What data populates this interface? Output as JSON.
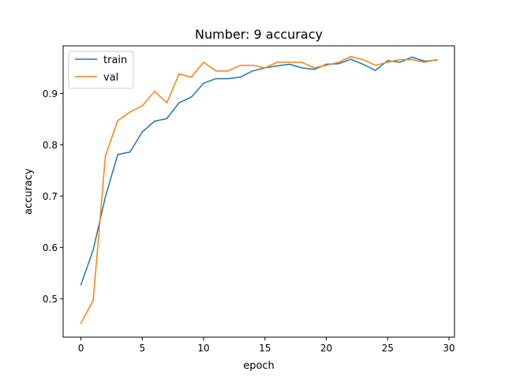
{
  "chart_data": {
    "type": "line",
    "title": "Number: 9 accuracy",
    "xlabel": "epoch",
    "ylabel": "accuracy",
    "xlim": [
      -1.45,
      30.45
    ],
    "ylim": [
      0.425,
      0.993
    ],
    "xticks": [
      0,
      5,
      10,
      15,
      20,
      25,
      30
    ],
    "yticks": [
      0.5,
      0.6,
      0.7,
      0.8,
      0.9
    ],
    "grid": false,
    "legend": "top-left",
    "x": [
      0,
      1,
      2,
      3,
      4,
      5,
      6,
      7,
      8,
      9,
      10,
      11,
      12,
      13,
      14,
      15,
      16,
      17,
      18,
      19,
      20,
      21,
      22,
      23,
      24,
      25,
      26,
      27,
      28,
      29
    ],
    "series": [
      {
        "name": "train",
        "color": "#1f77b4",
        "values": [
          0.527,
          0.595,
          0.699,
          0.781,
          0.786,
          0.825,
          0.846,
          0.851,
          0.882,
          0.893,
          0.92,
          0.929,
          0.929,
          0.932,
          0.944,
          0.95,
          0.954,
          0.957,
          0.95,
          0.947,
          0.957,
          0.958,
          0.967,
          0.957,
          0.945,
          0.964,
          0.961,
          0.971,
          0.963,
          0.965
        ]
      },
      {
        "name": "val",
        "color": "#ff7f0e",
        "values": [
          0.452,
          0.497,
          0.779,
          0.847,
          0.864,
          0.876,
          0.904,
          0.882,
          0.938,
          0.932,
          0.961,
          0.944,
          0.944,
          0.955,
          0.955,
          0.95,
          0.961,
          0.961,
          0.961,
          0.95,
          0.955,
          0.961,
          0.972,
          0.966,
          0.955,
          0.961,
          0.966,
          0.966,
          0.961,
          0.966
        ]
      }
    ]
  }
}
